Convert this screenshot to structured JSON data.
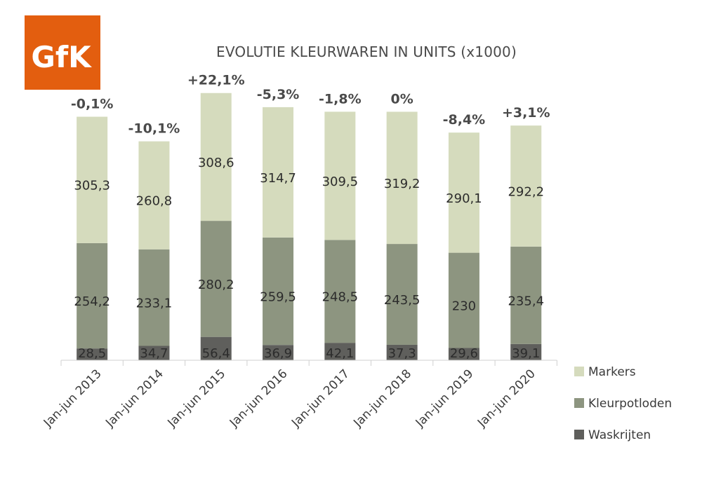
{
  "logo": {
    "text": "GfK",
    "color": "#E35E0F"
  },
  "chart_data": {
    "type": "bar",
    "stacked": true,
    "title": "EVOLUTIE KLEURWAREN IN UNITS (x1000)",
    "xlabel": "",
    "ylabel": "",
    "ylim": [
      0,
      660
    ],
    "grid": false,
    "legend_position": "right",
    "categories": [
      "Jan-jun 2013",
      "Jan-jun 2014",
      "Jan-jun 2015",
      "Jan-jun 2016",
      "Jan-jun 2017",
      "Jan-jun 2018",
      "Jan-jun 2019",
      "Jan-jun 2020"
    ],
    "series": [
      {
        "name": "Waskrijten",
        "color": "#5f5f5c",
        "values": [
          28.5,
          34.7,
          56.4,
          36.9,
          42.1,
          37.3,
          29.6,
          39.1
        ],
        "labels": [
          "28,5",
          "34,7",
          "56,4",
          "36,9",
          "42,1",
          "37,3",
          "29,6",
          "39,1"
        ]
      },
      {
        "name": "Kleurpotloden",
        "color": "#8d9580",
        "values": [
          254.2,
          233.1,
          280.2,
          259.5,
          248.5,
          243.5,
          230,
          235.4
        ],
        "labels": [
          "254,2",
          "233,1",
          "280,2",
          "259,5",
          "248,5",
          "243,5",
          "230",
          "235,4"
        ]
      },
      {
        "name": "Markers",
        "color": "#d5dbbd",
        "values": [
          305.3,
          260.8,
          308.6,
          314.7,
          309.5,
          319.2,
          290.1,
          292.2
        ],
        "labels": [
          "305,3",
          "260,8",
          "308,6",
          "314,7",
          "309,5",
          "319,2",
          "290,1",
          "292,2"
        ]
      }
    ],
    "totals_change": [
      "-0,1%",
      "-10,1%",
      "+22,1%",
      "-5,3%",
      "-1,8%",
      "0%",
      "-8,4%",
      "+3,1%"
    ]
  }
}
